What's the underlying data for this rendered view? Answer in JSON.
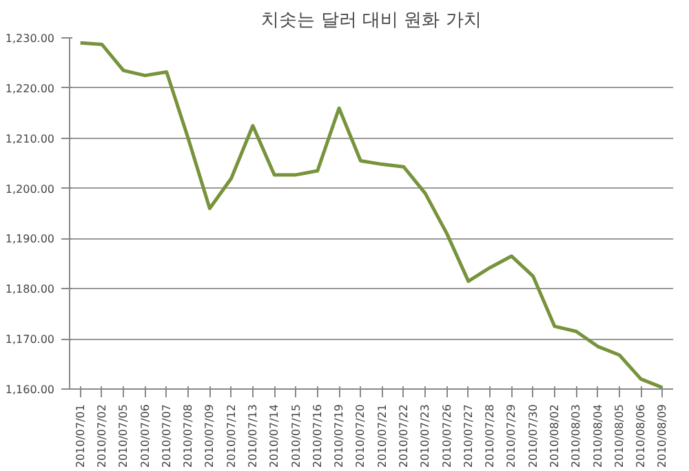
{
  "chart_data": {
    "type": "line",
    "title": "치솟는 달러 대비 원화 가치",
    "categories": [
      "2010/07/01",
      "2010/07/02",
      "2010/07/05",
      "2010/07/06",
      "2010/07/07",
      "2010/07/08",
      "2010/07/09",
      "2010/07/12",
      "2010/07/13",
      "2010/07/14",
      "2010/07/15",
      "2010/07/16",
      "2010/07/19",
      "2010/07/20",
      "2010/07/21",
      "2010/07/22",
      "2010/07/23",
      "2010/07/26",
      "2010/07/27",
      "2010/07/28",
      "2010/07/29",
      "2010/07/30",
      "2010/08/02",
      "2010/08/03",
      "2010/08/04",
      "2010/08/05",
      "2010/08/06",
      "2010/08/09"
    ],
    "series": [
      {
        "color": "#77933c",
        "values": [
          1229,
          1228.7,
          1223.5,
          1222.5,
          1223.2,
          1210,
          1196,
          1202,
          1212.5,
          1202.7,
          1202.7,
          1203.5,
          1216,
          1205.5,
          1204.8,
          1204.3,
          1199,
          1191,
          1181.5,
          1184.2,
          1186.5,
          1182.5,
          1172.5,
          1171.5,
          1168.5,
          1166.8,
          1162,
          1160.3
        ]
      }
    ],
    "ylim": [
      1160,
      1230
    ],
    "yticks": [
      {
        "value": 1160,
        "label": "1,160.00"
      },
      {
        "value": 1170,
        "label": "1,170.00"
      },
      {
        "value": 1180,
        "label": "1,180.00"
      },
      {
        "value": 1190,
        "label": "1,190.00"
      },
      {
        "value": 1200,
        "label": "1,200.00"
      },
      {
        "value": 1210,
        "label": "1,210.00"
      },
      {
        "value": 1220,
        "label": "1,220.00"
      },
      {
        "value": 1230,
        "label": "1,230.00"
      }
    ],
    "grid": "y",
    "line_style": "solid"
  }
}
